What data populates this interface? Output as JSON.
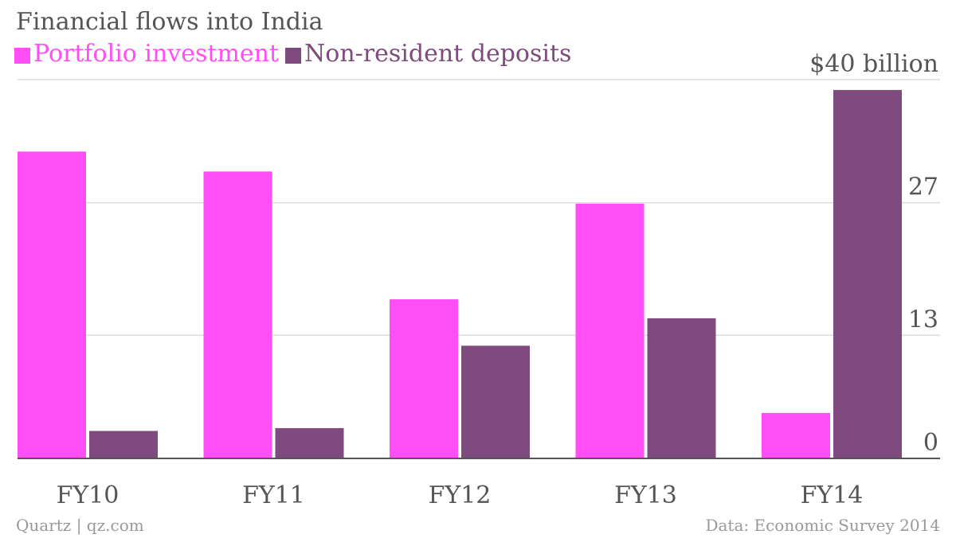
{
  "title": "Financial flows into India",
  "footer": {
    "credit": "Quartz | qz.com",
    "source": "Data: Economic Survey 2014"
  },
  "colors": {
    "portfolio": "#ff4ef6",
    "deposits": "#7f4a7d",
    "grid": "#dddddd",
    "axis": "#555555",
    "tick_text": "#555555"
  },
  "chart_data": {
    "type": "bar",
    "title": "Financial flows into India",
    "categories": [
      "FY10",
      "FY11",
      "FY12",
      "FY13",
      "FY14"
    ],
    "series": [
      {
        "name": "Portfolio investment",
        "color": "#ff4ef6",
        "values": [
          32.4,
          30.3,
          16.8,
          26.9,
          4.8
        ]
      },
      {
        "name": "Non-resident deposits",
        "color": "#7f4a7d",
        "values": [
          2.9,
          3.2,
          11.9,
          14.8,
          38.9
        ]
      }
    ],
    "ylim": [
      0,
      40
    ],
    "yticks": [
      0,
      13,
      27,
      40
    ],
    "ytick_labels": [
      "0",
      "13",
      "27",
      "$40 billion"
    ],
    "grid": true,
    "legend": "top-left"
  }
}
